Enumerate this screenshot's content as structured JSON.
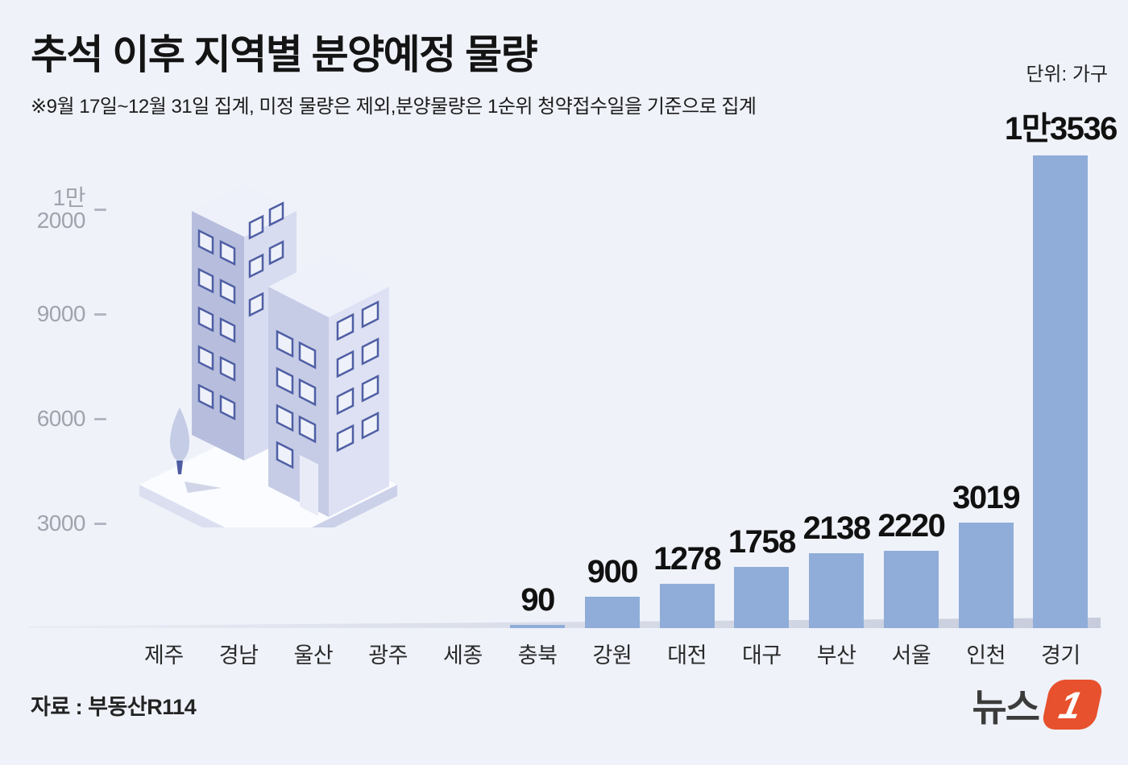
{
  "header": {
    "title": "추석 이후 지역별 분양예정 물량",
    "subtitle": "※9월 17일~12월 31일 집계, 미정 물량은 제외,분양물량은 1순위 청약접수일을 기준으로 집계",
    "unit_label": "단위: 가구"
  },
  "chart_data": {
    "type": "bar",
    "title": "추석 이후 지역별 분양예정 물량",
    "unit": "가구",
    "categories": [
      "제주",
      "경남",
      "울산",
      "광주",
      "세종",
      "충북",
      "강원",
      "대전",
      "대구",
      "부산",
      "서울",
      "인천",
      "경기"
    ],
    "values": [
      0,
      0,
      0,
      0,
      0,
      90,
      900,
      1278,
      1758,
      2138,
      2220,
      3019,
      13536
    ],
    "bar_labels": [
      "",
      "",
      "",
      "",
      "",
      "90",
      "900",
      "1278",
      "1758",
      "2138",
      "2220",
      "3019",
      "1만3536"
    ],
    "y_axis": {
      "ticks": [
        {
          "value": 12000,
          "lines": [
            "1만",
            "2000"
          ]
        },
        {
          "value": 9000,
          "lines": [
            "9000"
          ]
        },
        {
          "value": 6000,
          "lines": [
            "6000"
          ]
        },
        {
          "value": 3000,
          "lines": [
            "3000"
          ]
        }
      ],
      "range": [
        0,
        13536
      ]
    },
    "grid": false,
    "legend": "none"
  },
  "footer": {
    "source": "자료 : 부동산R114",
    "logo": {
      "text": "뉴스",
      "numeral": "1"
    }
  },
  "colors": {
    "background": "#eff2f9",
    "bar": "#8fadd8",
    "logo_orange": "#e7512d",
    "tick_label": "#9fa3ad"
  }
}
